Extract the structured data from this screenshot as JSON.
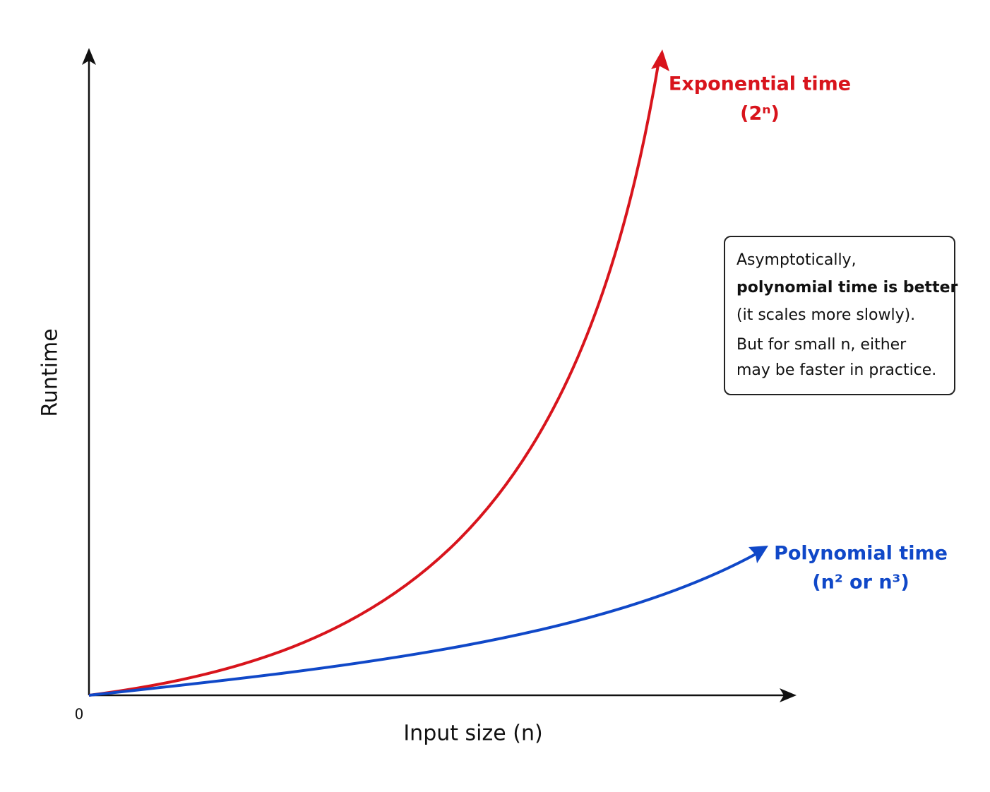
{
  "axes": {
    "y_label": "Runtime",
    "x_label": "Input size (n)",
    "origin_label": "0"
  },
  "curves": [
    {
      "name": "exponential",
      "label_lines": [
        "Exponential time",
        "(2ⁿ)"
      ]
    },
    {
      "name": "polynomial",
      "label_lines": [
        "Polynomial time",
        "(n² or n³)"
      ]
    }
  ],
  "note": {
    "lines": [
      "Asymptotically,",
      "polynomial time is better",
      "(it scales more slowly).",
      "But for small n, either",
      "may be faster in practice."
    ]
  }
}
